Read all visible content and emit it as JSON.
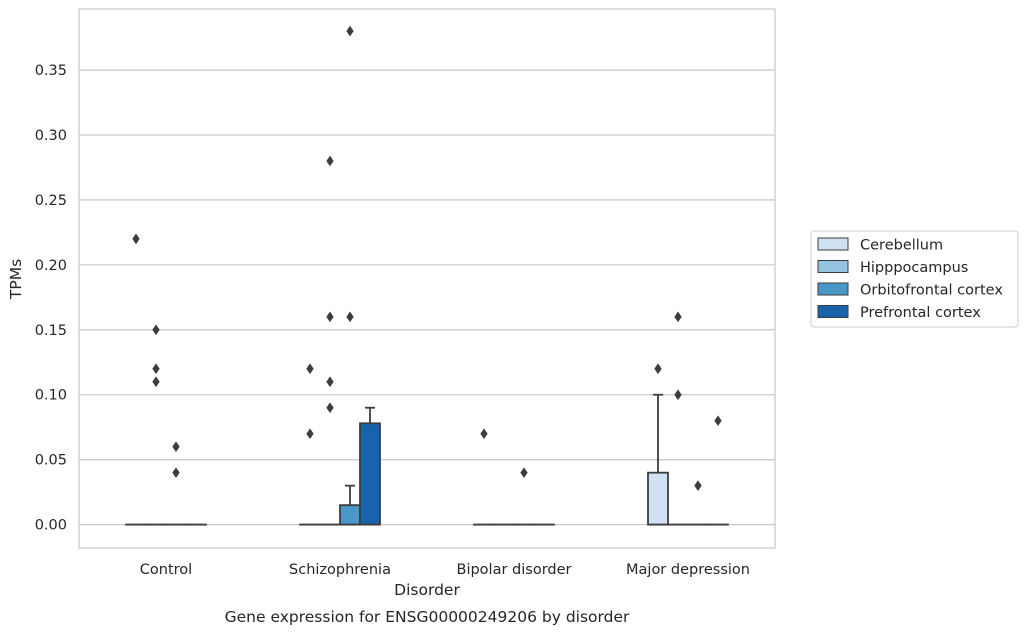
{
  "chart_data": {
    "type": "box",
    "caption": "Gene expression for ENSG00000249206 by disorder",
    "xlabel": "Disorder",
    "ylabel": "TPMs",
    "ylim": [
      -0.018,
      0.397
    ],
    "yticks": [
      0.0,
      0.05,
      0.1,
      0.15,
      0.2,
      0.25,
      0.3,
      0.35
    ],
    "ytick_labels": [
      "0.00",
      "0.05",
      "0.10",
      "0.15",
      "0.20",
      "0.25",
      "0.30",
      "0.35"
    ],
    "grid": true,
    "legend_position": "center-right",
    "categories": [
      "Control",
      "Schizophrenia",
      "Bipolar disorder",
      "Major depression"
    ],
    "series": [
      {
        "name": "Cerebellum",
        "color": "#d0e1f2",
        "boxes": [
          {
            "q1": 0,
            "median": 0,
            "q3": 0,
            "whisker_low": 0,
            "whisker_high": 0,
            "outliers": [
              0.22
            ]
          },
          {
            "q1": 0,
            "median": 0,
            "q3": 0,
            "whisker_low": 0,
            "whisker_high": 0,
            "outliers": [
              0.12,
              0.07
            ]
          },
          {
            "q1": 0,
            "median": 0,
            "q3": 0,
            "whisker_low": 0,
            "whisker_high": 0,
            "outliers": [
              0.07
            ]
          },
          {
            "q1": 0,
            "median": 0,
            "q3": 0.04,
            "whisker_low": 0,
            "whisker_high": 0.1,
            "outliers": [
              0.12
            ]
          }
        ]
      },
      {
        "name": "Hipppocampus",
        "color": "#94c4df",
        "boxes": [
          {
            "q1": 0,
            "median": 0,
            "q3": 0,
            "whisker_low": 0,
            "whisker_high": 0,
            "outliers": [
              0.15,
              0.12,
              0.11
            ]
          },
          {
            "q1": 0,
            "median": 0,
            "q3": 0,
            "whisker_low": 0,
            "whisker_high": 0,
            "outliers": [
              0.28,
              0.16,
              0.11,
              0.09
            ]
          },
          {
            "q1": 0,
            "median": 0,
            "q3": 0,
            "whisker_low": 0,
            "whisker_high": 0,
            "outliers": []
          },
          {
            "q1": 0,
            "median": 0,
            "q3": 0,
            "whisker_low": 0,
            "whisker_high": 0,
            "outliers": [
              0.16,
              0.1
            ]
          }
        ]
      },
      {
        "name": "Orbitofrontal cortex",
        "color": "#4a98c9",
        "boxes": [
          {
            "q1": 0,
            "median": 0,
            "q3": 0,
            "whisker_low": 0,
            "whisker_high": 0,
            "outliers": [
              0.06,
              0.04
            ]
          },
          {
            "q1": 0,
            "median": 0,
            "q3": 0.015,
            "whisker_low": 0,
            "whisker_high": 0.03,
            "outliers": [
              0.38,
              0.16
            ]
          },
          {
            "q1": 0,
            "median": 0,
            "q3": 0,
            "whisker_low": 0,
            "whisker_high": 0,
            "outliers": [
              0.04
            ]
          },
          {
            "q1": 0,
            "median": 0,
            "q3": 0,
            "whisker_low": 0,
            "whisker_high": 0,
            "outliers": [
              0.03
            ]
          }
        ]
      },
      {
        "name": "Prefrontal cortex",
        "color": "#1764ab",
        "boxes": [
          {
            "q1": 0,
            "median": 0,
            "q3": 0,
            "whisker_low": 0,
            "whisker_high": 0,
            "outliers": []
          },
          {
            "q1": 0,
            "median": 0,
            "q3": 0.078,
            "whisker_low": 0,
            "whisker_high": 0.09,
            "outliers": []
          },
          {
            "q1": 0,
            "median": 0,
            "q3": 0,
            "whisker_low": 0,
            "whisker_high": 0,
            "outliers": []
          },
          {
            "q1": 0,
            "median": 0,
            "q3": 0,
            "whisker_low": 0,
            "whisker_high": 0,
            "outliers": [
              0.08
            ]
          }
        ]
      }
    ]
  }
}
